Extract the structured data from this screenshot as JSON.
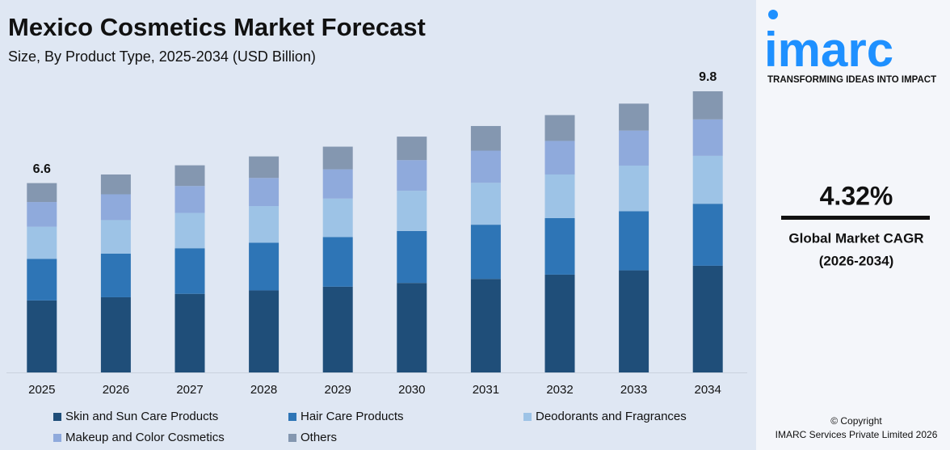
{
  "chart_data": {
    "type": "stacked-bar",
    "title": "Mexico Cosmetics Market Forecast",
    "subtitle": "Size, By Product Type, 2025-2034 (USD Billion)",
    "categories": [
      "2025",
      "2026",
      "2027",
      "2028",
      "2029",
      "2030",
      "2031",
      "2032",
      "2033",
      "2034"
    ],
    "series": [
      {
        "name": "Skin and Sun Care Products",
        "color": "#1f4e79",
        "values": [
          2.51,
          2.62,
          2.74,
          2.86,
          2.99,
          3.12,
          3.26,
          3.41,
          3.56,
          3.72
        ]
      },
      {
        "name": "Hair Care Products",
        "color": "#2e75b6",
        "values": [
          1.45,
          1.52,
          1.59,
          1.66,
          1.73,
          1.81,
          1.89,
          1.97,
          2.06,
          2.16
        ]
      },
      {
        "name": "Deodorants and Fragrances",
        "color": "#9dc3e6",
        "values": [
          1.12,
          1.17,
          1.23,
          1.28,
          1.34,
          1.4,
          1.46,
          1.52,
          1.59,
          1.67
        ]
      },
      {
        "name": "Makeup and Color Cosmetics",
        "color": "#8faadc",
        "values": [
          0.86,
          0.9,
          0.94,
          0.98,
          1.02,
          1.07,
          1.12,
          1.17,
          1.22,
          1.27
        ]
      },
      {
        "name": "Others",
        "color": "#8497b0",
        "values": [
          0.66,
          0.69,
          0.72,
          0.75,
          0.79,
          0.82,
          0.86,
          0.9,
          0.94,
          0.98
        ]
      }
    ],
    "totals": [
      6.6,
      null,
      null,
      null,
      null,
      null,
      null,
      null,
      null,
      9.8
    ]
  },
  "brand": {
    "logo": "imarc",
    "tagline": "TRANSFORMING IDEAS INTO IMPACT"
  },
  "cagr": {
    "value": "4.32%",
    "label": "Global Market CAGR",
    "period": "(2026-2034)"
  },
  "footer": {
    "copyright": "© Copyright",
    "company": "IMARC Services Private Limited 2026"
  }
}
